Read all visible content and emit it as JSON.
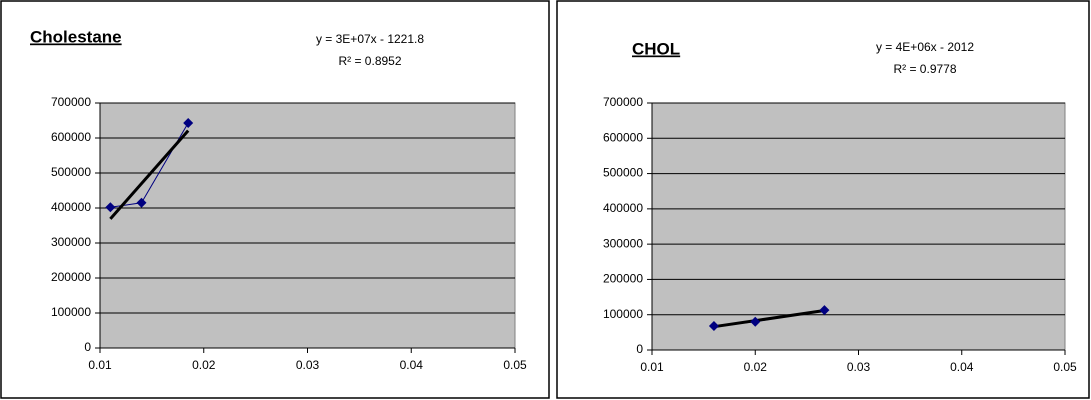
{
  "chart_data": [
    {
      "type": "scatter",
      "title": "Cholestane",
      "x": [
        0.011,
        0.014,
        0.0185
      ],
      "values": [
        402000,
        415000,
        643000
      ],
      "color": "#000080",
      "trendline": "linear",
      "trendline_color": "#000000",
      "annotations": [
        "y = 3E+07x - 1221.8",
        "R² = 0.8952"
      ],
      "xlim": [
        0.01,
        0.05
      ],
      "xticks": [
        0.01,
        0.02,
        0.03,
        0.04,
        0.05
      ],
      "ylim": [
        0,
        700000
      ],
      "yticks": [
        0,
        100000,
        200000,
        300000,
        400000,
        500000,
        600000,
        700000
      ],
      "grid": true,
      "plot_background": "#c0c0c0"
    },
    {
      "type": "scatter",
      "title": "CHOL",
      "x": [
        0.016,
        0.02,
        0.0267
      ],
      "values": [
        68000,
        80000,
        113000
      ],
      "color": "#000080",
      "trendline": "linear",
      "trendline_color": "#000000",
      "annotations": [
        "y = 4E+06x - 2012",
        "R² = 0.9778"
      ],
      "xlim": [
        0.01,
        0.05
      ],
      "xticks": [
        0.01,
        0.02,
        0.03,
        0.04,
        0.05
      ],
      "ylim": [
        0,
        700000
      ],
      "yticks": [
        0,
        100000,
        200000,
        300000,
        400000,
        500000,
        600000,
        700000
      ],
      "grid": true,
      "plot_background": "#c0c0c0"
    }
  ]
}
